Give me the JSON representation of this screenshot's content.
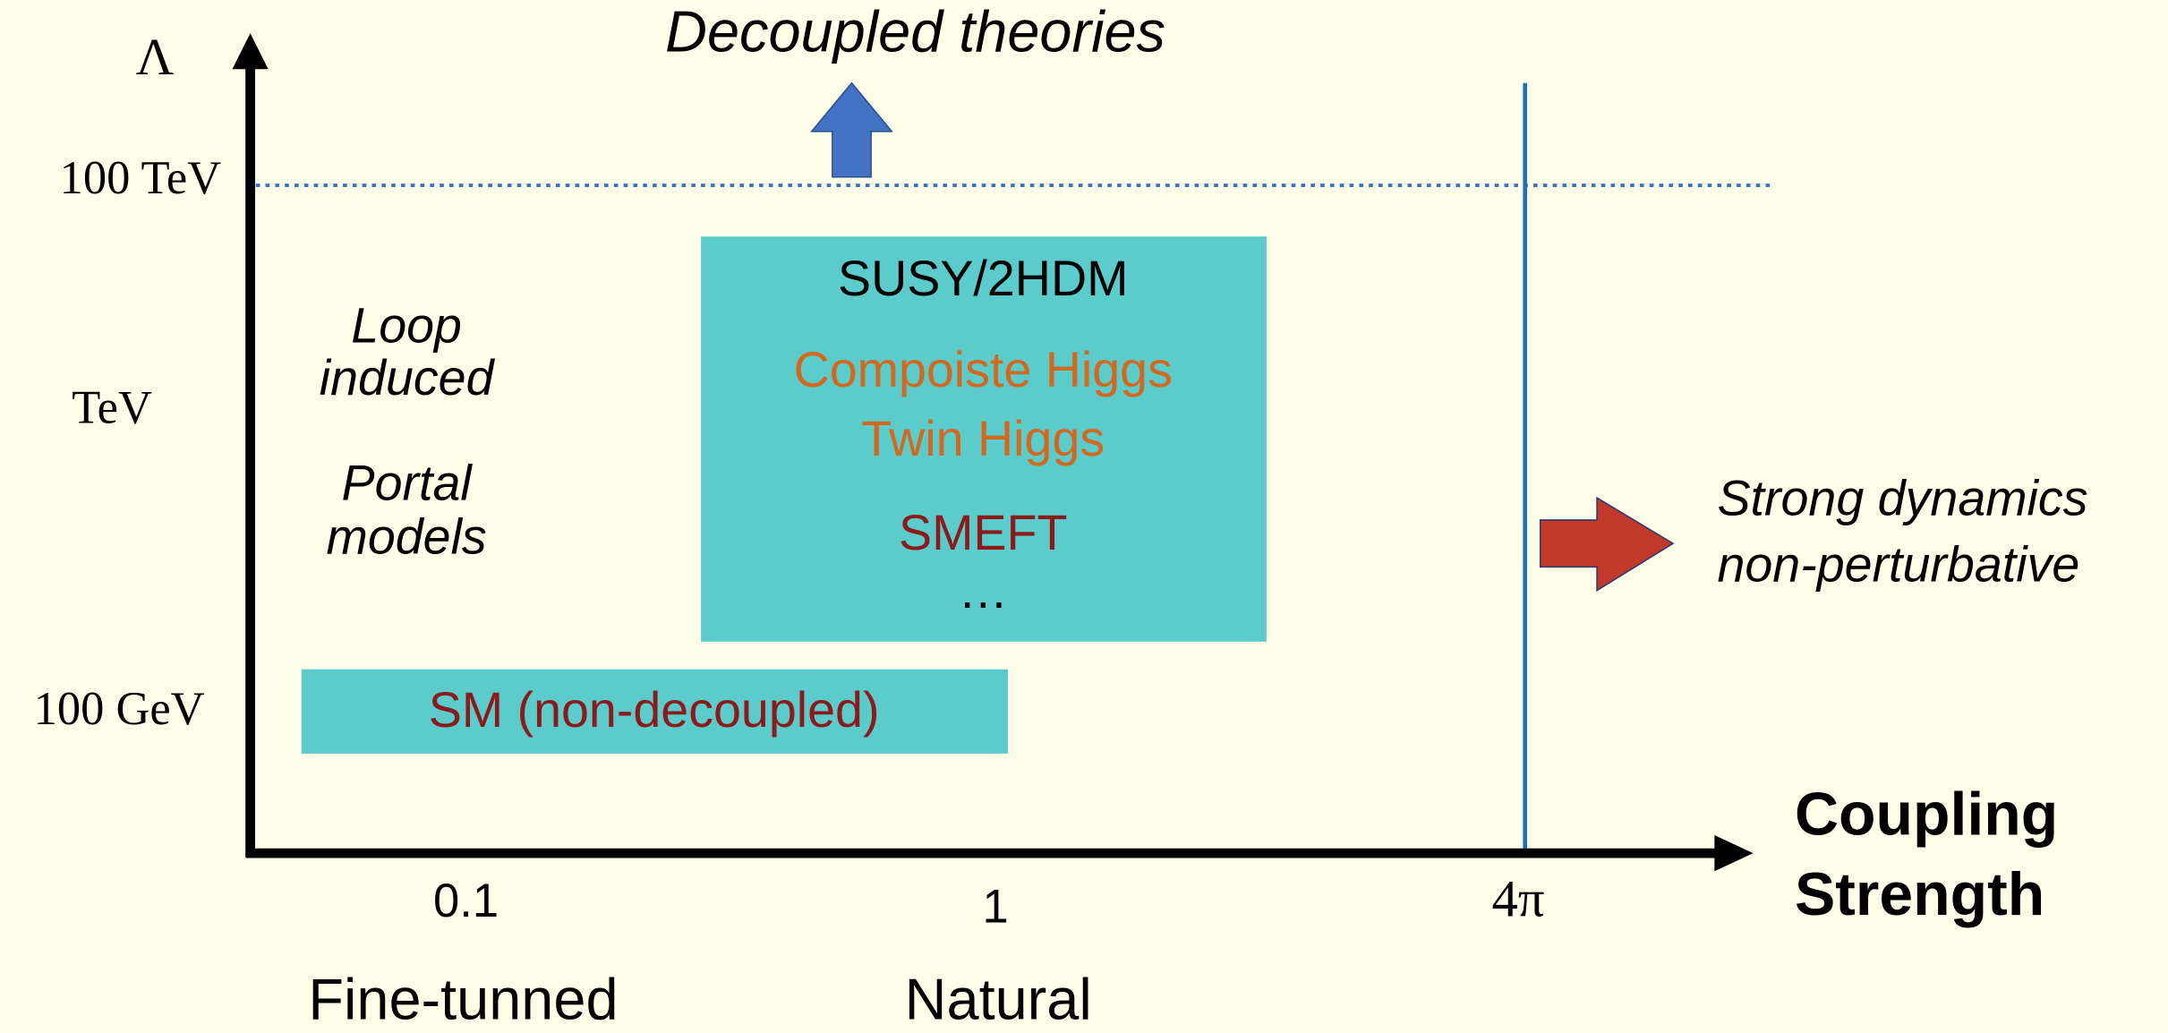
{
  "axes": {
    "y_label": "Λ",
    "x_label": [
      "Coupling",
      "Strength"
    ],
    "y_ticks": [
      "100 TeV",
      "TeV",
      "100 GeV"
    ],
    "x_ticks": [
      "0.1",
      "1",
      "4π"
    ],
    "x_regions": [
      "Fine-tunned",
      "Natural"
    ]
  },
  "annotations": {
    "top": "Decoupled theories",
    "right": [
      "Strong dynamics",
      "non-perturbative"
    ]
  },
  "labels": {
    "loop": [
      "Loop",
      "induced"
    ],
    "portal": [
      "Portal",
      "models"
    ]
  },
  "boxes": {
    "bsm": [
      "SUSY/2HDM",
      "Compoiste Higgs",
      "Twin Higgs",
      "SMEFT",
      "…"
    ],
    "sm": "SM (non-decoupled)"
  }
}
